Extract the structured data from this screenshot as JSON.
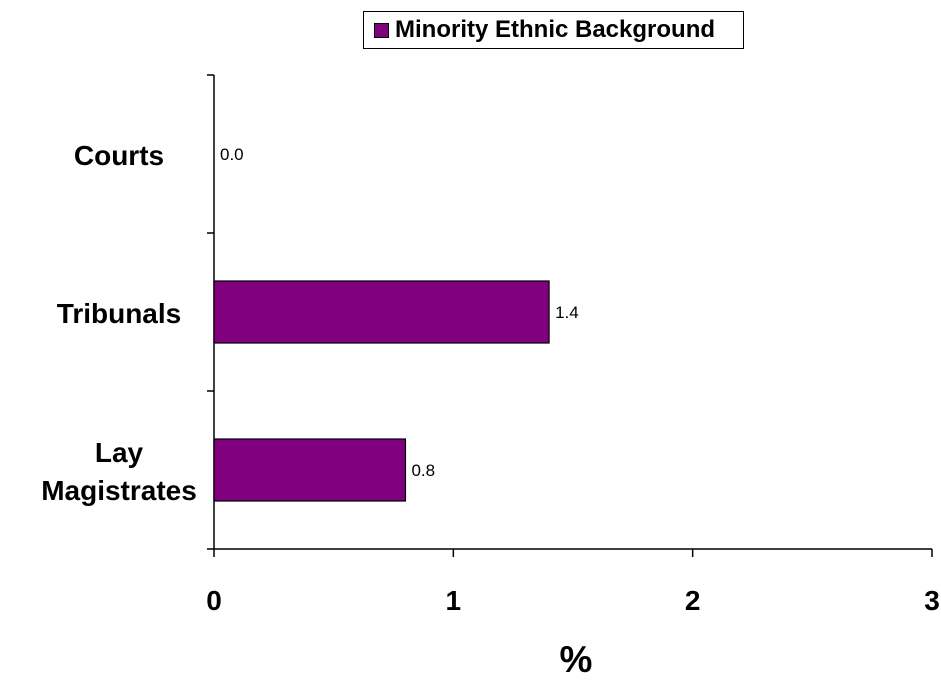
{
  "chart_data": {
    "type": "bar",
    "orientation": "horizontal",
    "categories": [
      "Courts",
      "Tribunals",
      "Lay Magistrates"
    ],
    "category_lines": [
      [
        "Courts"
      ],
      [
        "Tribunals"
      ],
      [
        "Lay",
        "Magistrates"
      ]
    ],
    "series": [
      {
        "name": "Minority Ethnic Background",
        "values": [
          0.0,
          1.4,
          0.8
        ],
        "labels": [
          "0.0",
          "1.4",
          "0.8"
        ],
        "color": "#800080"
      }
    ],
    "xlabel": "%",
    "ylabel": "",
    "xlim": [
      0,
      3
    ],
    "xticks": [
      "0",
      "1",
      "2",
      "3"
    ],
    "grid": false,
    "legend_position": "top"
  }
}
